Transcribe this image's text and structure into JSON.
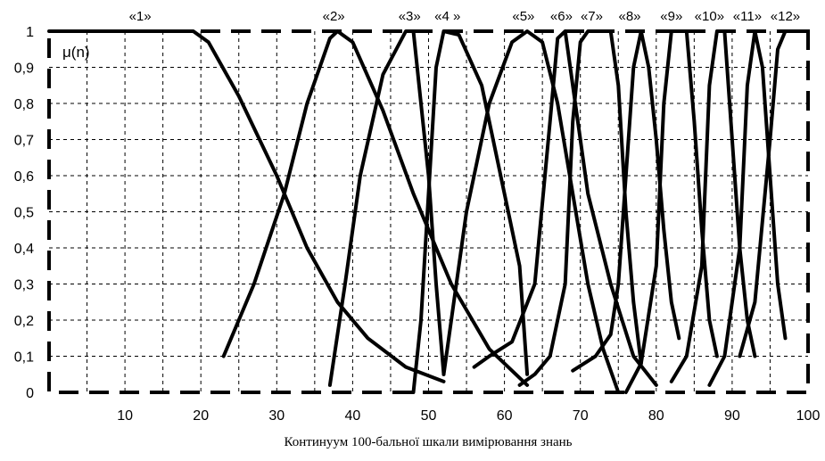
{
  "chart_data": {
    "type": "line",
    "title": "",
    "ylabel": "μ(n)",
    "xlabel": "Континуум 100-бальної шкали вимірювання знань",
    "xlim": [
      0,
      100
    ],
    "ylim": [
      0,
      1
    ],
    "x_ticks": [
      "10",
      "20",
      "30",
      "40",
      "50",
      "60",
      "70",
      "80",
      "90",
      "100"
    ],
    "y_ticks": [
      "0",
      "0,1",
      "0,2",
      "0,3",
      "0,4",
      "0,5",
      "0,6",
      "0,7",
      "0,8",
      "0,9",
      "1"
    ],
    "grade_labels": [
      {
        "label": "«1»",
        "x": 12
      },
      {
        "label": "«2»",
        "x": 37.5
      },
      {
        "label": "«3»",
        "x": 47.5
      },
      {
        "label": "«4  »",
        "x": 52.5
      },
      {
        "label": "«5»",
        "x": 62.5
      },
      {
        "label": "«6»",
        "x": 67.5
      },
      {
        "label": "«7»",
        "x": 71.5
      },
      {
        "label": "«8»",
        "x": 76.5
      },
      {
        "label": "«9»",
        "x": 82
      },
      {
        "label": "«10»",
        "x": 87
      },
      {
        "label": "«11»",
        "x": 92
      },
      {
        "label": "«12»",
        "x": 97
      }
    ],
    "grid": true,
    "series": [
      {
        "points": [
          [
            0,
            1
          ],
          [
            19,
            1
          ],
          [
            21,
            0.97
          ],
          [
            25,
            0.82
          ],
          [
            30,
            0.6
          ],
          [
            34,
            0.4
          ],
          [
            38,
            0.25
          ],
          [
            42,
            0.15
          ],
          [
            47,
            0.07
          ],
          [
            52,
            0.03
          ]
        ]
      },
      {
        "points": [
          [
            23,
            0.1
          ],
          [
            27,
            0.3
          ],
          [
            31,
            0.55
          ],
          [
            34,
            0.8
          ],
          [
            37,
            0.98
          ],
          [
            38,
            1
          ],
          [
            40,
            0.97
          ],
          [
            44,
            0.78
          ],
          [
            48,
            0.55
          ],
          [
            53,
            0.3
          ],
          [
            58,
            0.12
          ],
          [
            63,
            0.02
          ]
        ]
      },
      {
        "points": [
          [
            37,
            0.02
          ],
          [
            39,
            0.3
          ],
          [
            41,
            0.6
          ],
          [
            44,
            0.88
          ],
          [
            47,
            1
          ],
          [
            48,
            1
          ],
          [
            50,
            0.6
          ],
          [
            51,
            0.3
          ],
          [
            52,
            0.05
          ]
        ]
      },
      {
        "points": [
          [
            46,
            0
          ],
          [
            48,
            0
          ],
          [
            49,
            0.2
          ],
          [
            50,
            0.55
          ],
          [
            51,
            0.9
          ],
          [
            52,
            1
          ],
          [
            54,
            0.99
          ],
          [
            57,
            0.85
          ],
          [
            60,
            0.55
          ],
          [
            62,
            0.35
          ],
          [
            63,
            0.05
          ]
        ]
      },
      {
        "points": [
          [
            52,
            0.05
          ],
          [
            55,
            0.5
          ],
          [
            58,
            0.8
          ],
          [
            61,
            0.97
          ],
          [
            63,
            1
          ],
          [
            65,
            0.97
          ],
          [
            67,
            0.8
          ],
          [
            69,
            0.55
          ],
          [
            71,
            0.3
          ],
          [
            73,
            0.12
          ],
          [
            75,
            0
          ]
        ]
      },
      {
        "points": [
          [
            56,
            0.07
          ],
          [
            58,
            0.1
          ],
          [
            61,
            0.14
          ],
          [
            64,
            0.3
          ],
          [
            66,
            0.75
          ],
          [
            67,
            0.98
          ],
          [
            68,
            1
          ],
          [
            69,
            0.85
          ],
          [
            71,
            0.55
          ],
          [
            74,
            0.3
          ],
          [
            77,
            0.1
          ],
          [
            80,
            0.02
          ]
        ]
      },
      {
        "points": [
          [
            62,
            0.02
          ],
          [
            64,
            0.05
          ],
          [
            66,
            0.1
          ],
          [
            68,
            0.3
          ],
          [
            69,
            0.75
          ],
          [
            70,
            0.97
          ],
          [
            71,
            1
          ],
          [
            74,
            1
          ],
          [
            75,
            0.85
          ],
          [
            76,
            0.5
          ],
          [
            77,
            0.25
          ],
          [
            78,
            0.08
          ]
        ]
      },
      {
        "points": [
          [
            69,
            0.06
          ],
          [
            72,
            0.1
          ],
          [
            74,
            0.16
          ],
          [
            75,
            0.3
          ],
          [
            76,
            0.6
          ],
          [
            77,
            0.9
          ],
          [
            78,
            1
          ],
          [
            79,
            0.9
          ],
          [
            80,
            0.7
          ],
          [
            81,
            0.45
          ],
          [
            82,
            0.25
          ],
          [
            83,
            0.15
          ]
        ]
      },
      {
        "points": [
          [
            76,
            0
          ],
          [
            78,
            0.08
          ],
          [
            80,
            0.35
          ],
          [
            81,
            0.8
          ],
          [
            82,
            1
          ],
          [
            84,
            1
          ],
          [
            85,
            0.75
          ],
          [
            86,
            0.45
          ],
          [
            87,
            0.2
          ],
          [
            88,
            0.1
          ]
        ]
      },
      {
        "points": [
          [
            82,
            0.03
          ],
          [
            84,
            0.1
          ],
          [
            86,
            0.35
          ],
          [
            87,
            0.85
          ],
          [
            88,
            1
          ],
          [
            89,
            1
          ],
          [
            90,
            0.7
          ],
          [
            91,
            0.4
          ],
          [
            92,
            0.2
          ],
          [
            93,
            0.1
          ]
        ]
      },
      {
        "points": [
          [
            87,
            0.02
          ],
          [
            89,
            0.1
          ],
          [
            91,
            0.4
          ],
          [
            92,
            0.85
          ],
          [
            93,
            1
          ],
          [
            94,
            0.9
          ],
          [
            95,
            0.6
          ],
          [
            96,
            0.3
          ],
          [
            97,
            0.15
          ]
        ]
      },
      {
        "points": [
          [
            91,
            0.1
          ],
          [
            93,
            0.25
          ],
          [
            95,
            0.7
          ],
          [
            96,
            0.95
          ],
          [
            97,
            1
          ],
          [
            100,
            1
          ]
        ]
      }
    ]
  }
}
